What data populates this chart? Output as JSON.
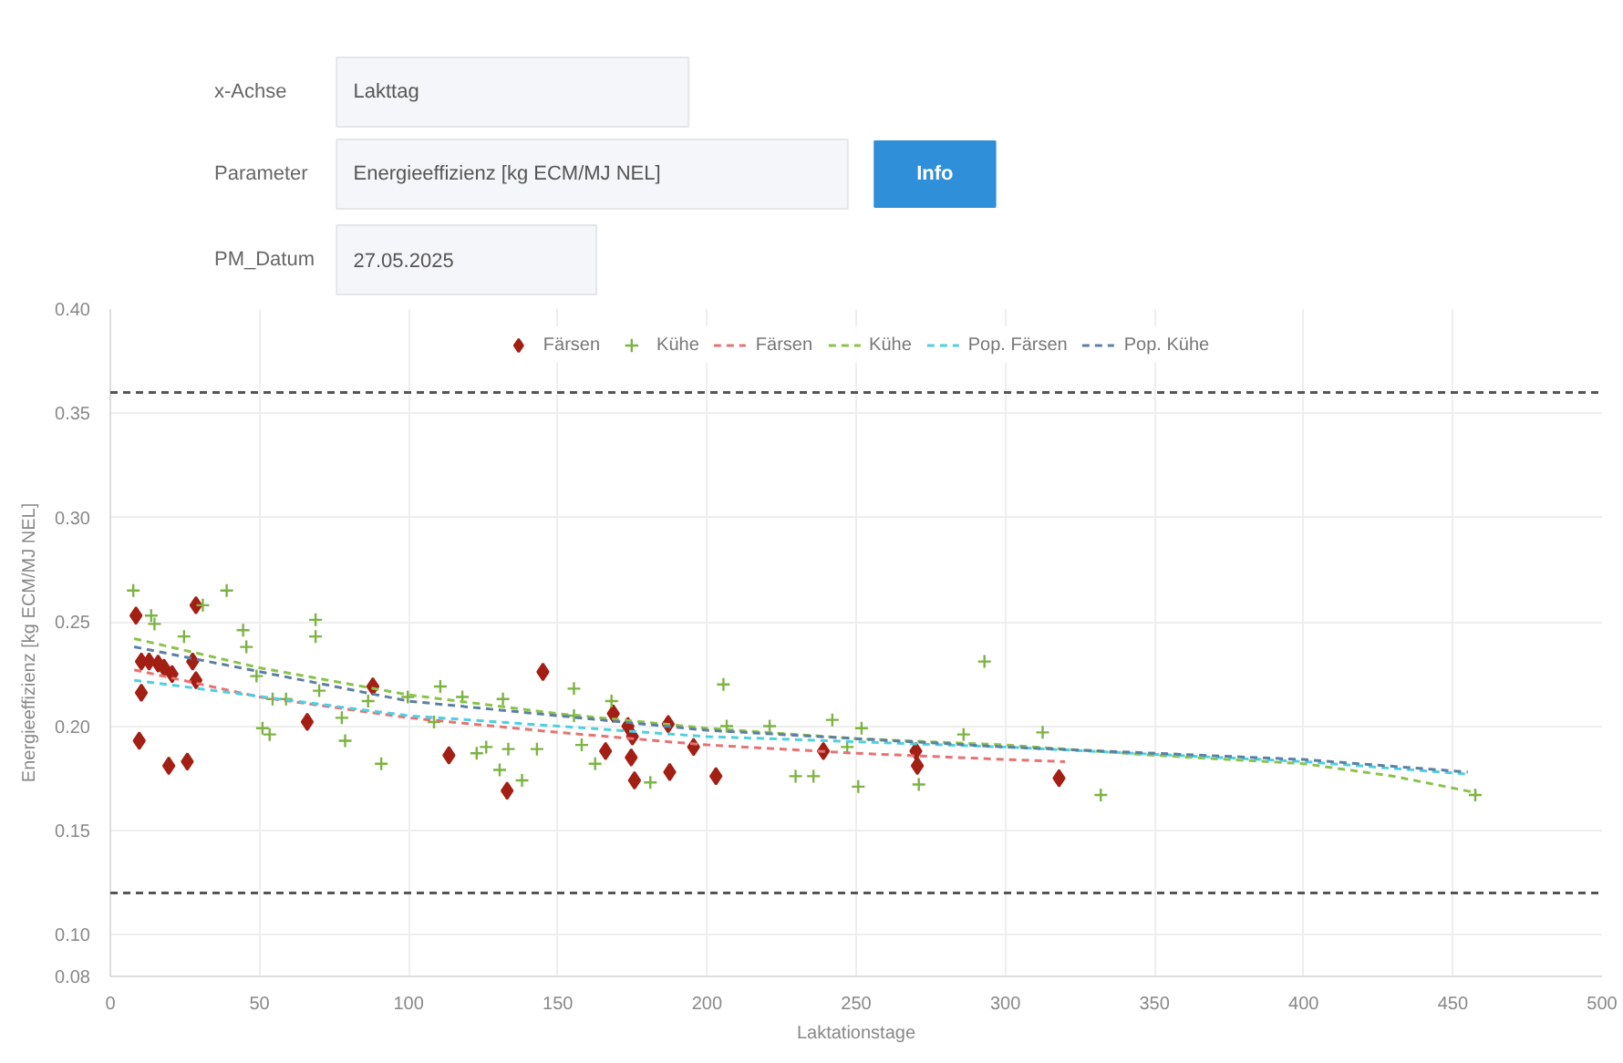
{
  "chart_data": {
    "type": "scatter",
    "annotations": [
      "x-Achse",
      "Lakttag",
      "Parameter",
      "Energieeffizienz [kg ECM/MJ NEL]",
      "Info",
      "PM_Datum",
      "27.05.2025"
    ],
    "xlabel": "Laktationstage",
    "ylabel": "Energieeffizienz [kg ECM/MJ NEL]",
    "xlim": [
      0,
      500
    ],
    "xticks": [
      0,
      50,
      100,
      150,
      200,
      250,
      300,
      350,
      400,
      450,
      500
    ],
    "ylim": [
      0.08,
      0.4
    ],
    "yticks": [
      {
        "value": 0.08,
        "label": "0.08"
      },
      {
        "value": 0.1,
        "label": "0.10"
      },
      {
        "value": 0.15,
        "label": "0.15"
      },
      {
        "value": 0.2,
        "label": "0.20"
      },
      {
        "value": 0.25,
        "label": "0.25"
      },
      {
        "value": 0.3,
        "label": "0.30"
      },
      {
        "value": 0.35,
        "label": "0.35"
      },
      {
        "value": 0.4,
        "label": "0.40"
      }
    ],
    "grid": true,
    "legend": "top",
    "ref_lines": [
      {
        "axis": "y",
        "value": 0.36,
        "color": "#555555",
        "line_style": "dashed"
      },
      {
        "axis": "y",
        "value": 0.12,
        "color": "#555555",
        "line_style": "dashed"
      }
    ],
    "series": [
      {
        "name": "Färsen",
        "marker": "diamond",
        "color": "#a31f14",
        "x": [
          8.6,
          10.4,
          13,
          16,
          18,
          20.7,
          10.4,
          9.7,
          19.6,
          25.8,
          28.7,
          27.6,
          28.7,
          66,
          88,
          113.5,
          145,
          133,
          166,
          168.6,
          173.5,
          175,
          174.6,
          175.7,
          187,
          187.5,
          195.5,
          203,
          239,
          270,
          270.5,
          318
        ],
        "values": [
          0.253,
          0.231,
          0.231,
          0.23,
          0.228,
          0.225,
          0.216,
          0.193,
          0.181,
          0.183,
          0.258,
          0.231,
          0.222,
          0.202,
          0.219,
          0.186,
          0.226,
          0.169,
          0.188,
          0.206,
          0.2,
          0.195,
          0.185,
          0.174,
          0.201,
          0.178,
          0.19,
          0.176,
          0.188,
          0.188,
          0.181,
          0.175
        ]
      },
      {
        "name": "Kühe",
        "marker": "cross",
        "color": "#7cb342",
        "x": [
          7.7,
          39,
          31,
          13.7,
          14.8,
          24.7,
          44.5,
          45.6,
          68.8,
          68.8,
          49,
          54.4,
          58.9,
          51,
          53.4,
          70,
          77.6,
          78.7,
          90.8,
          86.4,
          99.7,
          110.6,
          118,
          108.5,
          122.8,
          126,
          131.6,
          133.4,
          130.5,
          138,
          143,
          155.4,
          155.4,
          158,
          162.5,
          168,
          181,
          205.5,
          206.6,
          221,
          229.7,
          235.7,
          242,
          250.7,
          251.8,
          271,
          286,
          293,
          312.5,
          332,
          457.5,
          247
        ],
        "values": [
          0.265,
          0.265,
          0.258,
          0.253,
          0.249,
          0.243,
          0.246,
          0.238,
          0.251,
          0.243,
          0.224,
          0.213,
          0.213,
          0.199,
          0.196,
          0.217,
          0.204,
          0.193,
          0.182,
          0.212,
          0.214,
          0.219,
          0.214,
          0.202,
          0.187,
          0.19,
          0.213,
          0.189,
          0.179,
          0.174,
          0.189,
          0.218,
          0.205,
          0.191,
          0.182,
          0.212,
          0.173,
          0.22,
          0.2,
          0.2,
          0.176,
          0.176,
          0.203,
          0.171,
          0.199,
          0.172,
          0.196,
          0.231,
          0.197,
          0.167,
          0.167,
          0.19
        ]
      },
      {
        "name": "Färsen",
        "type": "line",
        "line_style": "dashed",
        "color": "#e57373",
        "x": [
          8,
          50,
          100,
          150,
          200,
          250,
          300,
          320
        ],
        "values": [
          0.227,
          0.214,
          0.204,
          0.197,
          0.191,
          0.187,
          0.184,
          0.183
        ]
      },
      {
        "name": "Kühe",
        "type": "line",
        "line_style": "dashed",
        "color": "#8bc34a",
        "x": [
          8,
          50,
          100,
          150,
          200,
          250,
          300,
          350,
          400,
          430,
          458
        ],
        "values": [
          0.242,
          0.228,
          0.215,
          0.206,
          0.199,
          0.194,
          0.191,
          0.186,
          0.182,
          0.176,
          0.168
        ]
      },
      {
        "name": "Pop. Färsen",
        "type": "line",
        "line_style": "dashed",
        "color": "#4dd0e1",
        "x": [
          8,
          100,
          200,
          300,
          400,
          455
        ],
        "values": [
          0.222,
          0.205,
          0.195,
          0.19,
          0.183,
          0.177
        ]
      },
      {
        "name": "Pop. Kühe",
        "type": "line",
        "line_style": "dashed",
        "color": "#5c7fa3",
        "x": [
          8,
          100,
          200,
          300,
          400,
          455
        ],
        "values": [
          0.238,
          0.212,
          0.198,
          0.19,
          0.184,
          0.178
        ]
      }
    ]
  }
}
